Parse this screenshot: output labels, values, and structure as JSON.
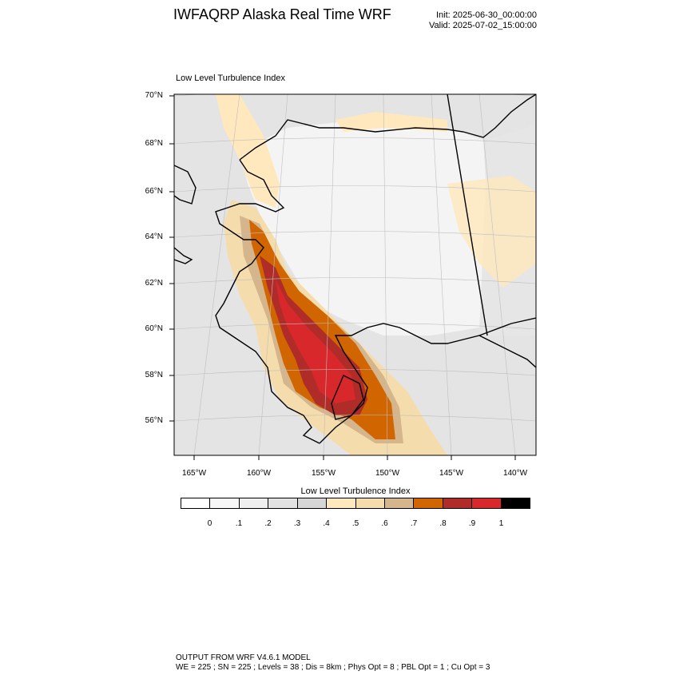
{
  "header": {
    "title": "IWFAQRP Alaska Real Time WRF",
    "init": "Init: 2025-06-30_00:00:00",
    "valid": "Valid: 2025-07-02_15:00:00"
  },
  "plot": {
    "label": "Low Level Turbulence Index"
  },
  "map": {
    "lat_labels": [
      "70°N",
      "68°N",
      "66°N",
      "64°N",
      "62°N",
      "60°N",
      "58°N",
      "56°N"
    ],
    "lon_labels": [
      "165°W",
      "160°W",
      "155°W",
      "150°W",
      "145°W",
      "140°W"
    ],
    "colors": {
      "land_light": "#f2f2f2",
      "ocean_mid": "#e4e4e4",
      "tan_light": "#ffe8bd",
      "tan": "#f5dcac",
      "tan_dark": "#d4b58c",
      "orange": "#d16500",
      "red_brown": "#b02c28",
      "red": "#d8282b",
      "coast": "#000000",
      "grid": "#bfbfbf"
    }
  },
  "colorbar": {
    "title": "Low Level Turbulence Index",
    "colors": [
      "#ffffff",
      "#f7f7f7",
      "#efefef",
      "#e2e2e2",
      "#d6d6d6",
      "#ffe8bd",
      "#f5dcac",
      "#d4b58c",
      "#d16500",
      "#b02c28",
      "#d8282b",
      "#000000"
    ],
    "ticks": [
      "0",
      ".1",
      ".2",
      ".3",
      ".4",
      ".5",
      ".6",
      ".7",
      ".8",
      ".9",
      "1"
    ]
  },
  "footer": {
    "line1": "OUTPUT FROM WRF V4.6.1 MODEL",
    "line2": "WE = 225 ; SN = 225 ; Levels = 38 ; Dis = 8km ; Phys Opt = 8 ; PBL Opt = 1 ; Cu Opt = 3"
  }
}
